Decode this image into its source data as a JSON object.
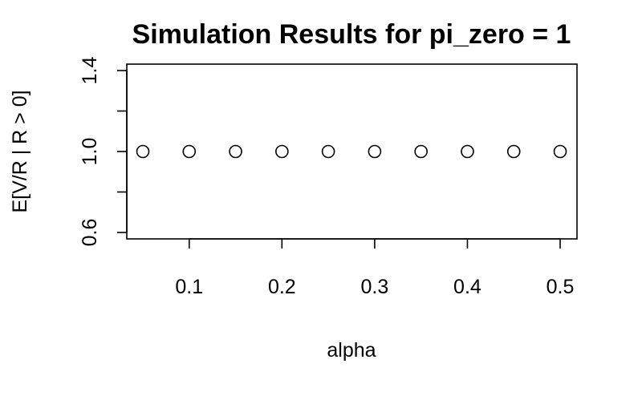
{
  "chart_data": {
    "type": "scatter",
    "title": "Simulation Results for pi_zero = 1",
    "xlabel": "alpha",
    "ylabel": "E[V/R | R > 0]",
    "x": [
      0.05,
      0.1,
      0.15,
      0.2,
      0.25,
      0.3,
      0.35,
      0.4,
      0.45,
      0.5
    ],
    "y": [
      1,
      1,
      1,
      1,
      1,
      1,
      1,
      1,
      1,
      1
    ],
    "xlim": [
      0.05,
      0.5
    ],
    "ylim": [
      0.6,
      1.4
    ],
    "xticks": [
      0.1,
      0.2,
      0.3,
      0.4,
      0.5
    ],
    "xtick_labels": [
      "0.1",
      "0.2",
      "0.3",
      "0.4",
      "0.5"
    ],
    "yticks": [
      0.6,
      0.8,
      1.0,
      1.2,
      1.4
    ],
    "ytick_labels": [
      "0.6",
      "",
      "1.0",
      "",
      "1.4"
    ],
    "grid": false,
    "marker": "open-circle",
    "marker_color": "#000000"
  }
}
